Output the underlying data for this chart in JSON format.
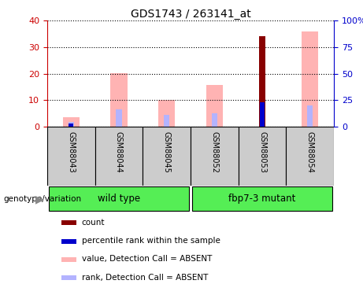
{
  "title": "GDS1743 / 263141_at",
  "samples": [
    "GSM88043",
    "GSM88044",
    "GSM88045",
    "GSM88052",
    "GSM88053",
    "GSM88054"
  ],
  "value_absent": [
    3.5,
    20.3,
    10.0,
    15.7,
    0.0,
    36.0
  ],
  "rank_absent": [
    1.8,
    6.5,
    4.5,
    5.2,
    0.0,
    8.0
  ],
  "count": [
    0,
    0,
    0,
    0,
    34.0,
    0
  ],
  "percentile_rank": [
    1.2,
    0,
    0,
    0,
    9.2,
    0
  ],
  "left_ylim": [
    0,
    40
  ],
  "left_yticks": [
    0,
    10,
    20,
    30,
    40
  ],
  "right_ylim": [
    0,
    100
  ],
  "right_yticks": [
    0,
    25,
    50,
    75,
    100
  ],
  "right_yticklabels": [
    "0",
    "25",
    "50",
    "75",
    "100%"
  ],
  "left_axis_color": "#cc0000",
  "right_axis_color": "#0000cc",
  "color_value_absent": "#ffb3b3",
  "color_rank_absent": "#b3b3ff",
  "color_count": "#880000",
  "color_percentile": "#0000cc",
  "bg_color": "#ffffff",
  "plot_bg": "#ffffff",
  "grid_color": "black",
  "label_area_color": "#cccccc",
  "group_color_wt": "#55ee55",
  "group_color_mut": "#44dd44",
  "wt_label": "wild type",
  "mut_label": "fbp7-3 mutant",
  "legend_items": [
    [
      "#880000",
      "count"
    ],
    [
      "#0000cc",
      "percentile rank within the sample"
    ],
    [
      "#ffb3b3",
      "value, Detection Call = ABSENT"
    ],
    [
      "#b3b3ff",
      "rank, Detection Call = ABSENT"
    ]
  ],
  "thin_bar_width": 0.12,
  "pink_bar_width": 0.35
}
